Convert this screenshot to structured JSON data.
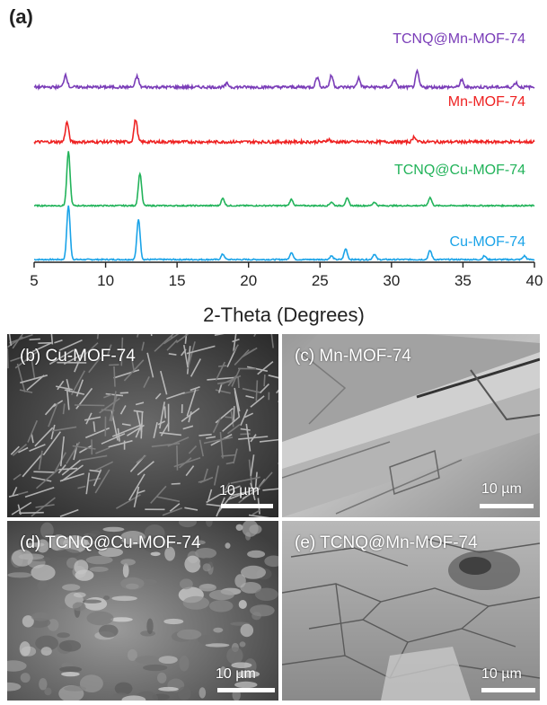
{
  "figure": {
    "panel_a_label": "(a)",
    "sem_panels": [
      {
        "label": "(b) Cu-MOF-74",
        "scale_bar": "10 µm"
      },
      {
        "label": "(c) Mn-MOF-74",
        "scale_bar": "10 µm"
      },
      {
        "label": "(d) TCNQ@Cu-MOF-74",
        "scale_bar": "10 µm"
      },
      {
        "label": "(e) TCNQ@Mn-MOF-74",
        "scale_bar": "10 µm"
      }
    ]
  },
  "chart_data": {
    "type": "line",
    "title": "",
    "xlabel": "2-Theta (Degrees)",
    "ylabel": "",
    "xlim": [
      5,
      40
    ],
    "xticks": [
      5,
      10,
      15,
      20,
      25,
      30,
      35,
      40
    ],
    "series": [
      {
        "name": "Cu-MOF-74",
        "color": "#1aa3e8",
        "peaks": [
          [
            7.4,
            60
          ],
          [
            12.3,
            45
          ],
          [
            18.2,
            6
          ],
          [
            23.0,
            8
          ],
          [
            25.8,
            4
          ],
          [
            26.8,
            12
          ],
          [
            28.8,
            6
          ],
          [
            32.7,
            10
          ],
          [
            36.5,
            4
          ],
          [
            39.3,
            4
          ]
        ]
      },
      {
        "name": "TCNQ@Cu-MOF-74",
        "color": "#22b35a",
        "peaks": [
          [
            7.4,
            60
          ],
          [
            12.4,
            36
          ],
          [
            18.2,
            8
          ],
          [
            23.0,
            7
          ],
          [
            25.8,
            4
          ],
          [
            26.9,
            8
          ],
          [
            28.8,
            4
          ],
          [
            32.7,
            9
          ]
        ]
      },
      {
        "name": "Mn-MOF-74",
        "color": "#ee2222",
        "peaks": [
          [
            7.3,
            22
          ],
          [
            12.1,
            25
          ],
          [
            25.6,
            3
          ],
          [
            31.6,
            6
          ]
        ]
      },
      {
        "name": "TCNQ@Mn-MOF-74",
        "color": "#7a3db8",
        "peaks": [
          [
            7.2,
            14
          ],
          [
            12.2,
            12
          ],
          [
            18.5,
            4
          ],
          [
            24.8,
            11
          ],
          [
            25.8,
            13
          ],
          [
            27.7,
            10
          ],
          [
            30.2,
            9
          ],
          [
            31.8,
            17
          ],
          [
            34.9,
            8
          ],
          [
            38.7,
            5
          ]
        ]
      }
    ]
  }
}
